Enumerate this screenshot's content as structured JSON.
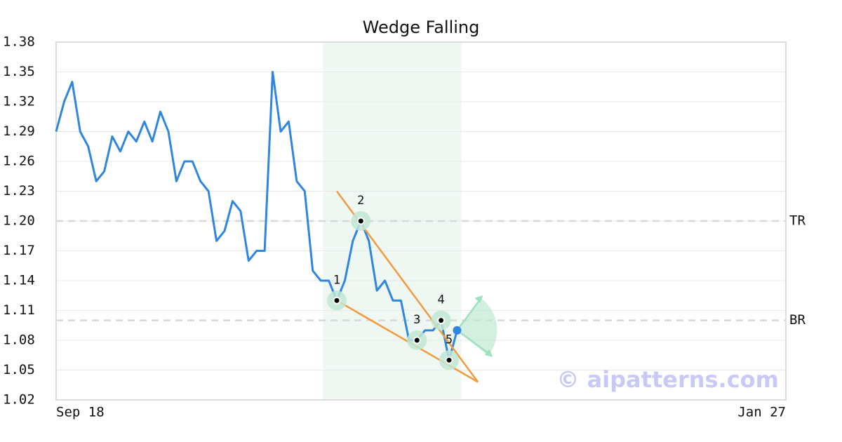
{
  "chart_data": {
    "type": "line",
    "title": "Wedge Falling",
    "categories": [
      "Sep 18",
      null,
      null,
      null,
      null,
      null,
      null,
      null,
      null,
      null,
      null,
      null,
      null,
      null,
      null,
      null,
      null,
      null,
      null,
      null,
      null,
      null,
      null,
      null,
      null,
      null,
      null,
      null,
      null,
      null,
      null,
      null,
      null,
      null,
      null,
      null,
      null,
      null,
      null,
      null,
      null,
      null,
      null,
      null,
      null,
      null,
      null,
      null,
      null,
      null,
      null,
      null,
      null,
      null,
      null,
      null,
      null,
      null,
      null,
      null,
      null,
      null,
      null,
      null,
      null,
      null,
      null,
      null,
      null,
      null,
      null,
      null,
      null,
      null,
      null,
      null,
      null,
      null,
      null,
      null,
      null,
      null,
      null,
      null,
      null,
      null,
      null,
      null,
      null,
      null,
      null,
      "Jan 27"
    ],
    "series": [
      {
        "color": "#2f86e0",
        "values": [
          1.29,
          1.32,
          1.34,
          1.29,
          1.275,
          1.24,
          1.25,
          1.285,
          1.27,
          1.29,
          1.28,
          1.3,
          1.28,
          1.31,
          1.29,
          1.24,
          1.26,
          1.26,
          1.24,
          1.23,
          1.18,
          1.19,
          1.22,
          1.21,
          1.16,
          1.17,
          1.17,
          1.35,
          1.29,
          1.3,
          1.24,
          1.23,
          1.15,
          1.14,
          1.14,
          1.12,
          1.14,
          1.18,
          1.2,
          1.18,
          1.13,
          1.14,
          1.12,
          1.12,
          1.08,
          1.08,
          1.09,
          1.09,
          1.1,
          1.06,
          1.09,
          null,
          null,
          null,
          null,
          null,
          null,
          null,
          null,
          null,
          null,
          null,
          null,
          null,
          null,
          null,
          null,
          null,
          null,
          null,
          null,
          null,
          null,
          null,
          null,
          null,
          null,
          null,
          null,
          null,
          null,
          null,
          null,
          null,
          null,
          null,
          null,
          null,
          null,
          null,
          null,
          null
        ]
      }
    ],
    "pattern_points": {
      "values": [
        null,
        null,
        null,
        null,
        null,
        null,
        null,
        null,
        null,
        null,
        null,
        null,
        null,
        null,
        null,
        null,
        null,
        null,
        null,
        null,
        null,
        null,
        null,
        null,
        null,
        null,
        null,
        null,
        null,
        null,
        null,
        null,
        null,
        null,
        null,
        1.12,
        null,
        null,
        1.2,
        null,
        null,
        null,
        null,
        null,
        null,
        1.08,
        null,
        null,
        1.1,
        1.06,
        null
      ],
      "value_labels": [
        null,
        null,
        null,
        null,
        null,
        null,
        null,
        null,
        null,
        null,
        null,
        null,
        null,
        null,
        null,
        null,
        null,
        null,
        null,
        null,
        null,
        null,
        null,
        null,
        null,
        null,
        null,
        null,
        null,
        null,
        null,
        null,
        null,
        null,
        null,
        "1",
        null,
        null,
        "2",
        null,
        null,
        null,
        null,
        null,
        null,
        "3",
        null,
        null,
        "4",
        "5",
        null
      ]
    },
    "wedge_lines": [
      {
        "color": "#f39a3e",
        "start": [
          35,
          1.23
        ],
        "end": [
          52.6,
          1.038
        ]
      },
      {
        "color": "#f39a3e",
        "start": [
          35,
          1.12
        ],
        "end": [
          52.6,
          1.038
        ]
      }
    ],
    "highlight_range": [
      33.3,
      50.5
    ],
    "levels": [
      {
        "label": "TR",
        "value": 1.2
      },
      {
        "label": "BR",
        "value": 1.1
      }
    ],
    "ylim": [
      1.02,
      1.38
    ],
    "yticks": [
      1.02,
      1.05,
      1.08,
      1.11,
      1.14,
      1.17,
      {
        "value": 1.2,
        "label": "1.20"
      },
      1.23,
      1.26,
      1.29,
      1.32,
      1.35,
      1.38
    ],
    "grid": true,
    "watermark": "© aipatterns.com"
  }
}
